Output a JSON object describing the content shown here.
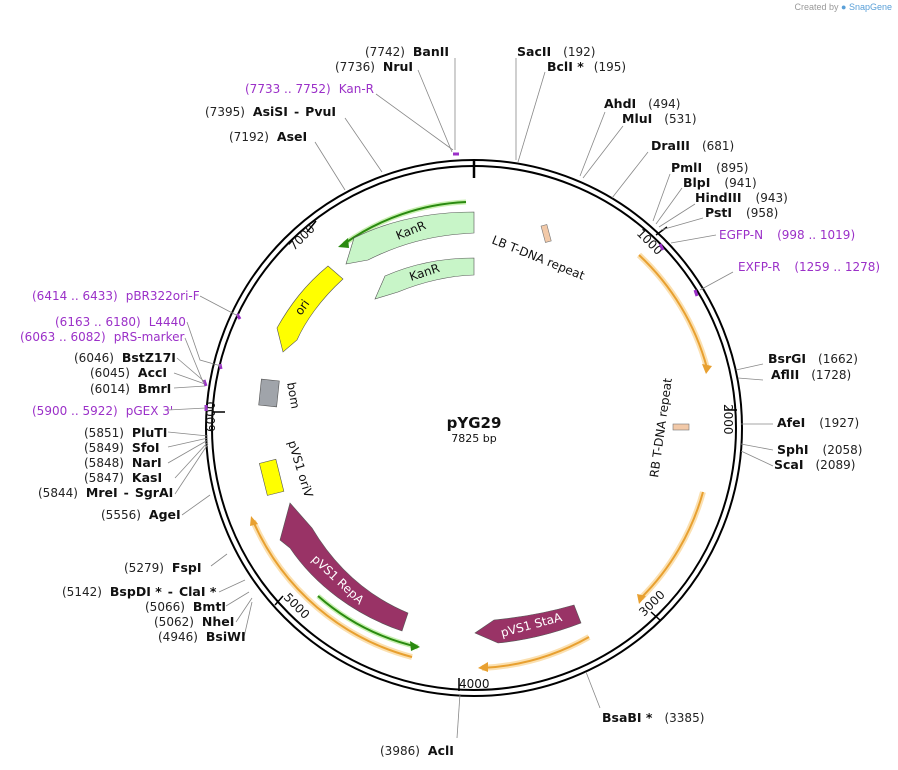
{
  "credit": {
    "prefix": "Created by",
    "brand": "SnapGene"
  },
  "plasmid": {
    "name": "pYG29",
    "length_label": "7825 bp",
    "length": 7825
  },
  "ticks": [
    "1000",
    "2000",
    "3000",
    "4000",
    "5000",
    "6000",
    "7000"
  ],
  "sites": [
    {
      "pos": "(7742)",
      "name": "BanII"
    },
    {
      "pos": "(7736)",
      "name": "NruI"
    },
    {
      "pos": "(7395)",
      "name": "AsiSI",
      "name2": "PvuI"
    },
    {
      "pos": "(7192)",
      "name": "AseI"
    },
    {
      "pos": "(192)",
      "name": "SacII"
    },
    {
      "pos": "(195)",
      "name": "BclI *"
    },
    {
      "pos": "(494)",
      "name": "AhdI"
    },
    {
      "pos": "(531)",
      "name": "MluI"
    },
    {
      "pos": "(681)",
      "name": "DraIII"
    },
    {
      "pos": "(895)",
      "name": "PmlI"
    },
    {
      "pos": "(941)",
      "name": "BlpI"
    },
    {
      "pos": "(943)",
      "name": "HindIII"
    },
    {
      "pos": "(958)",
      "name": "PstI"
    },
    {
      "pos": "(1662)",
      "name": "BsrGI"
    },
    {
      "pos": "(1728)",
      "name": "AflII"
    },
    {
      "pos": "(1927)",
      "name": "AfeI"
    },
    {
      "pos": "(2058)",
      "name": "SphI"
    },
    {
      "pos": "(2089)",
      "name": "ScaI"
    },
    {
      "pos": "(3385)",
      "name": "BsaBI *"
    },
    {
      "pos": "(3986)",
      "name": "AclI"
    },
    {
      "pos": "(4946)",
      "name": "BsiWI"
    },
    {
      "pos": "(5062)",
      "name": "NheI"
    },
    {
      "pos": "(5066)",
      "name": "BmtI"
    },
    {
      "pos": "(5142)",
      "name": "BspDI *",
      "name2": "ClaI *"
    },
    {
      "pos": "(5279)",
      "name": "FspI"
    },
    {
      "pos": "(5556)",
      "name": "AgeI"
    },
    {
      "pos": "(5844)",
      "name": "MreI",
      "name2": "SgrAI"
    },
    {
      "pos": "(5847)",
      "name": "KasI"
    },
    {
      "pos": "(5848)",
      "name": "NarI"
    },
    {
      "pos": "(5849)",
      "name": "SfoI"
    },
    {
      "pos": "(5851)",
      "name": "PluTI"
    },
    {
      "pos": "(6014)",
      "name": "BmrI"
    },
    {
      "pos": "(6045)",
      "name": "AccI"
    },
    {
      "pos": "(6046)",
      "name": "BstZ17I"
    }
  ],
  "primers": [
    {
      "range": "(7733 .. 7752)",
      "name": "Kan-R"
    },
    {
      "range": "(998 .. 1019)",
      "name": "EGFP-N"
    },
    {
      "range": "(1259 .. 1278)",
      "name": "EXFP-R"
    },
    {
      "range": "(6414 .. 6433)",
      "name": "pBR322ori-F"
    },
    {
      "range": "(6163 .. 6180)",
      "name": "L4440"
    },
    {
      "range": "(6063 .. 6082)",
      "name": "pRS-marker"
    },
    {
      "range": "(5900 .. 5922)",
      "name": "pGEX 3'"
    }
  ],
  "features": [
    {
      "name": "KanR",
      "color": "#c8f5c8"
    },
    {
      "name": "KanR",
      "color": "#c8f5c8"
    },
    {
      "name": "ori",
      "color": "#ffff00"
    },
    {
      "name": "bom",
      "color": "#a0a4aa"
    },
    {
      "name": "pVS1 oriV",
      "color": "#ffff00"
    },
    {
      "name": "pVS1 RepA",
      "color": "#993366"
    },
    {
      "name": "pVS1 StaA",
      "color": "#993366"
    },
    {
      "name": "LB T-DNA repeat",
      "color": "#f2c9a8"
    },
    {
      "name": "RB T-DNA repeat",
      "color": "#f2c9a8"
    }
  ],
  "colors": {
    "primer": "#9b30c8",
    "orf": "#e8a030",
    "orf_fill": "#fbe6c2",
    "green_orf": "#2a8a10",
    "backbone": "#000000"
  }
}
